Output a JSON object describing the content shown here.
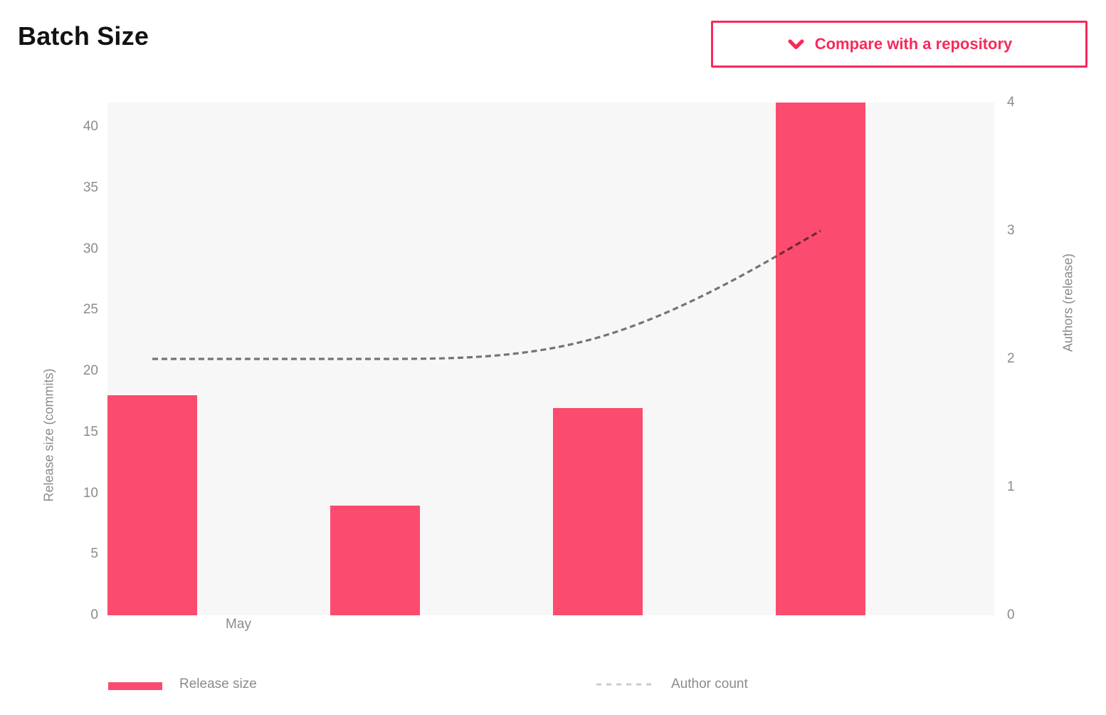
{
  "header": {
    "title": "Batch Size"
  },
  "compare_button": {
    "label": "Compare with a repository",
    "icon": "chevron-down",
    "color": "#f9295a"
  },
  "chart_data": {
    "type": "bar",
    "title": "Batch Size",
    "series": [
      {
        "name": "Release size",
        "type": "bar",
        "yaxis": "left",
        "color": "#fb4b6e",
        "values": [
          18,
          9,
          17,
          42
        ]
      },
      {
        "name": "Author count",
        "type": "line",
        "yaxis": "right",
        "line_style": "dashed",
        "color": "rgba(0,0,0,0.53)",
        "values": [
          2,
          2,
          2,
          3
        ]
      }
    ],
    "left_axis": {
      "title": "Release size (commits)",
      "ticks": [
        0,
        5,
        10,
        15,
        20,
        25,
        30,
        35,
        40
      ],
      "range": [
        0,
        42
      ]
    },
    "right_axis": {
      "title": "Authors (release)",
      "ticks": [
        0,
        1,
        2,
        3,
        4
      ],
      "range": [
        0,
        4
      ]
    },
    "x_axis": {
      "tick_labels": [
        "May"
      ]
    },
    "legend": [
      "Release size",
      "Author count"
    ],
    "legend_dash_color": "#cbcbcb",
    "plot_background": "#f7f7f7",
    "grid": false
  }
}
